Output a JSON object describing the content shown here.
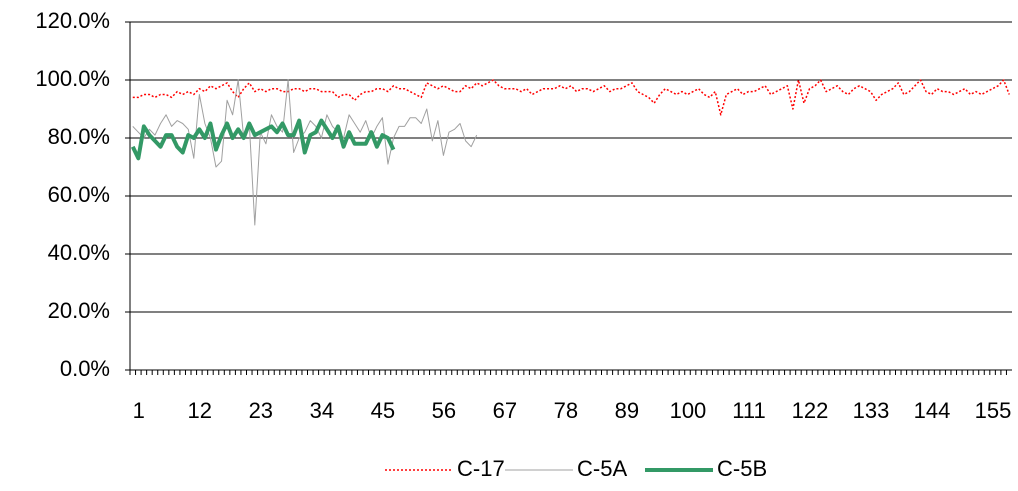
{
  "chart_data": {
    "type": "line",
    "categories": [
      1,
      null,
      null,
      null,
      null,
      null,
      null,
      null,
      null,
      null,
      null,
      12,
      null,
      null,
      null,
      null,
      null,
      null,
      null,
      null,
      null,
      null,
      23,
      null,
      null,
      null,
      null,
      null,
      null,
      null,
      null,
      null,
      null,
      34,
      null,
      null,
      null,
      null,
      null,
      null,
      null,
      null,
      null,
      null,
      45,
      null,
      null,
      null,
      null,
      null,
      null,
      null,
      null,
      null,
      null,
      56,
      null,
      null,
      null,
      null,
      null,
      null,
      null,
      null,
      null,
      null,
      67,
      null,
      null,
      null,
      null,
      null,
      null,
      null,
      null,
      null,
      null,
      78,
      null,
      null,
      null,
      null,
      null,
      null,
      null,
      null,
      null,
      null,
      89,
      null,
      null,
      null,
      null,
      null,
      null,
      null,
      null,
      null,
      null,
      100,
      null,
      null,
      null,
      null,
      null,
      null,
      null,
      null,
      null,
      null,
      111,
      null,
      null,
      null,
      null,
      null,
      null,
      null,
      null,
      null,
      null,
      122,
      null,
      null,
      null,
      null,
      null,
      null,
      null,
      null,
      null,
      null,
      133,
      null,
      null,
      null,
      null,
      null,
      null,
      null,
      null,
      null,
      null,
      144,
      null,
      null,
      null,
      null,
      null,
      null,
      null,
      null,
      null,
      null,
      155,
      null,
      null,
      null,
      null
    ],
    "series": [
      {
        "name": "C-17",
        "color": "#ff0000",
        "values": [
          94,
          94,
          95,
          95,
          94,
          95,
          95,
          94,
          96,
          95,
          96,
          95,
          97,
          96,
          98,
          97,
          98,
          99,
          96,
          94,
          97,
          99,
          96,
          97,
          96,
          97,
          97,
          96,
          96,
          97,
          97,
          96,
          97,
          97,
          96,
          96,
          96,
          94,
          95,
          95,
          93,
          95,
          96,
          96,
          97,
          97,
          96,
          98,
          97,
          97,
          96,
          95,
          94,
          99,
          98,
          97,
          98,
          97,
          96,
          96,
          98,
          97,
          99,
          98,
          99,
          100,
          98,
          97,
          97,
          97,
          96,
          97,
          95,
          96,
          97,
          97,
          97,
          98,
          97,
          98,
          96,
          97,
          97,
          96,
          97,
          98,
          96,
          97,
          97,
          98,
          99,
          96,
          95,
          94,
          92,
          95,
          97,
          96,
          95,
          96,
          95,
          96,
          97,
          95,
          94,
          96,
          88,
          95,
          96,
          97,
          95,
          96,
          96,
          97,
          98,
          95,
          96,
          97,
          98,
          90,
          100,
          92,
          97,
          98,
          100,
          96,
          97,
          98,
          96,
          95,
          97,
          98,
          97,
          96,
          93,
          95,
          96,
          97,
          99,
          95,
          96,
          98,
          100,
          96,
          95,
          97,
          96,
          96,
          95,
          96,
          97,
          95,
          96,
          95,
          96,
          97,
          98,
          100,
          95
        ]
      },
      {
        "name": "C-5A",
        "color": "#a0a0a0",
        "values": [
          84,
          82,
          80,
          83,
          81,
          85,
          88,
          84,
          86,
          85,
          83,
          73,
          95,
          85,
          80,
          70,
          72,
          93,
          88,
          100,
          80,
          85,
          50,
          82,
          78,
          88,
          84,
          82,
          100,
          75,
          80,
          82,
          86,
          84,
          80,
          88,
          84,
          82,
          80,
          88,
          85,
          82,
          86,
          80,
          84,
          87,
          71,
          80,
          84,
          84,
          87,
          87,
          85,
          90,
          79,
          86,
          74,
          82,
          83,
          85,
          79,
          77,
          81,
          null,
          null,
          null,
          null,
          null,
          null,
          null,
          null,
          null,
          null,
          null,
          null,
          null,
          null,
          null,
          null,
          null,
          null,
          null,
          null,
          null,
          null,
          null,
          null,
          null,
          null,
          null,
          null,
          null,
          null,
          null,
          null,
          null,
          null,
          null,
          null,
          null,
          null,
          null,
          null,
          null,
          null,
          null,
          null,
          null,
          null,
          null,
          null,
          null,
          null,
          null,
          null,
          null,
          null,
          null,
          null,
          null,
          null,
          null,
          null,
          null,
          null,
          null,
          null,
          null,
          null,
          null,
          null,
          null,
          null,
          null,
          null,
          null,
          null,
          null,
          null,
          null,
          null,
          null,
          null,
          null,
          null,
          null,
          null,
          null,
          null,
          null,
          null,
          null,
          null,
          null,
          null,
          null,
          null,
          null,
          null
        ]
      },
      {
        "name": "C-5B",
        "color": "#339966",
        "values": [
          77,
          73,
          84,
          81,
          79,
          77,
          81,
          81,
          77,
          75,
          81,
          80,
          83,
          80,
          85,
          76,
          81,
          85,
          80,
          83,
          80,
          85,
          81,
          82,
          83,
          84,
          82,
          85,
          81,
          81,
          86,
          75,
          81,
          82,
          86,
          83,
          80,
          84,
          77,
          82,
          78,
          78,
          78,
          82,
          77,
          81,
          80,
          76,
          null,
          null,
          null,
          null,
          null,
          null,
          null,
          null,
          null,
          null,
          null,
          null,
          null,
          null,
          null,
          null,
          null,
          null,
          null,
          null,
          null,
          null,
          null,
          null,
          null,
          null,
          null,
          null,
          null,
          null,
          null,
          null,
          null,
          null,
          null,
          null,
          null,
          null,
          null,
          null,
          null,
          null,
          null,
          null,
          null,
          null,
          null,
          null,
          null,
          null,
          null,
          null,
          null,
          null,
          null,
          null,
          null,
          null,
          null,
          null,
          null,
          null,
          null,
          null,
          null,
          null,
          null,
          null,
          null,
          null,
          null,
          null,
          null,
          null,
          null,
          null,
          null,
          null,
          null,
          null,
          null,
          null,
          null,
          null,
          null,
          null,
          null,
          null,
          null,
          null,
          null,
          null,
          null,
          null,
          null,
          null,
          null,
          null,
          null,
          null,
          null,
          null,
          null,
          null,
          null,
          null,
          null,
          null,
          null,
          null,
          null
        ]
      }
    ],
    "ylim": [
      0,
      120
    ],
    "yticks": [
      {
        "value": 0,
        "label": "0.0%"
      },
      {
        "value": 20,
        "label": "20.0%"
      },
      {
        "value": 40,
        "label": "40.0%"
      },
      {
        "value": 60,
        "label": "60.0%"
      },
      {
        "value": 80,
        "label": "80.0%"
      },
      {
        "value": 100,
        "label": "100.0%"
      },
      {
        "value": 120,
        "label": "120.0%"
      }
    ],
    "grid": true,
    "legend": "bottom"
  }
}
